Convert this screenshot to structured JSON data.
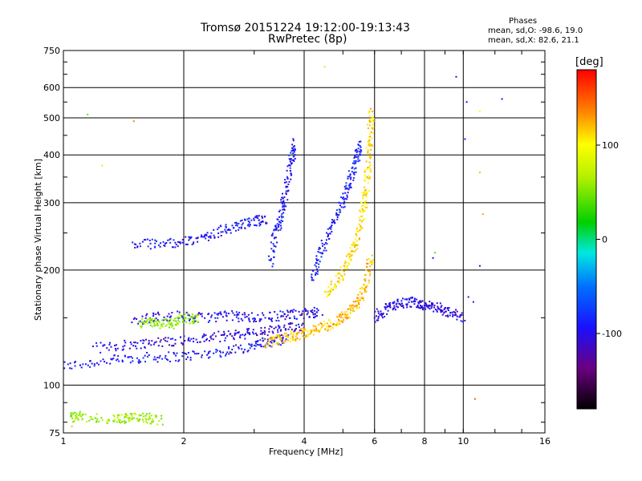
{
  "header": {
    "title_line1": "Tromsø 20151224 19:12:00-19:13:43",
    "title_line2": "RwPretec (8p)",
    "phases_label": "Phases",
    "stat_o": "mean, sd,O: -98.6, 19.0",
    "stat_x": "mean, sd,X:  82.6, 21.1"
  },
  "colorbar": {
    "unit": "[deg]",
    "ticks": [
      "100",
      "0",
      "-100"
    ],
    "tick_values": [
      100,
      0,
      -100
    ],
    "range": [
      -180,
      180
    ]
  },
  "chart_data": {
    "type": "scatter",
    "xlabel": "Frequency [MHz]",
    "ylabel": "Stationary phase Virtual Height [km]",
    "xscale": "log",
    "yscale": "log",
    "xlim": [
      1,
      16
    ],
    "ylim": [
      75,
      750
    ],
    "xticks": [
      1,
      2,
      4,
      6,
      8,
      10,
      16
    ],
    "xtick_labels": [
      "1",
      "2",
      "4",
      "6",
      "8",
      "10",
      "16"
    ],
    "yticks": [
      75,
      100,
      200,
      300,
      400,
      500,
      600,
      750
    ],
    "ytick_labels": [
      "75",
      "100",
      "200",
      "300",
      "400",
      "500",
      "600",
      "750"
    ],
    "grid": true,
    "color_by": "phase [deg]",
    "traces": [
      {
        "phase": -100,
        "x": [
          1.0,
          1.3,
          1.6,
          2.0,
          2.5,
          3.0,
          3.3,
          3.6
        ],
        "y": [
          112,
          116,
          118,
          119,
          122,
          127,
          130,
          132
        ]
      },
      {
        "phase": -110,
        "x": [
          1.2,
          1.5,
          1.8,
          2.2,
          2.6,
          3.0,
          3.5,
          4.0
        ],
        "y": [
          125,
          128,
          130,
          132,
          135,
          137,
          140,
          143
        ]
      },
      {
        "phase": -105,
        "x": [
          1.5,
          1.8,
          2.2,
          2.6,
          3.0,
          3.5,
          4.0,
          4.4
        ],
        "y": [
          148,
          152,
          150,
          152,
          150,
          152,
          154,
          155
        ]
      },
      {
        "phase": -100,
        "x": [
          1.5,
          1.8,
          2.1,
          2.4,
          2.7,
          3.0,
          3.2
        ],
        "y": [
          233,
          235,
          238,
          250,
          260,
          268,
          272
        ]
      },
      {
        "phase": -100,
        "x": [
          3.3,
          3.4,
          3.5,
          3.6,
          3.7,
          3.8
        ],
        "y": [
          210,
          250,
          280,
          320,
          380,
          430
        ]
      },
      {
        "phase": 120,
        "x": [
          3.2,
          3.5,
          3.8,
          4.1,
          4.5,
          4.9,
          5.2,
          5.5,
          5.7,
          5.9
        ],
        "y": [
          128,
          132,
          135,
          138,
          142,
          148,
          155,
          165,
          185,
          220
        ]
      },
      {
        "phase": 110,
        "x": [
          4.5,
          4.9,
          5.2,
          5.4,
          5.6,
          5.7,
          5.8,
          5.85,
          5.9
        ],
        "y": [
          170,
          190,
          215,
          240,
          280,
          320,
          380,
          450,
          530
        ]
      },
      {
        "phase": -95,
        "x": [
          4.2,
          4.4,
          4.7,
          5.0,
          5.2,
          5.4,
          5.5
        ],
        "y": [
          190,
          220,
          260,
          300,
          340,
          390,
          430
        ]
      },
      {
        "phase": -110,
        "x": [
          6.0,
          6.5,
          7.0,
          7.5,
          8.0,
          8.6,
          9.2,
          10.0
        ],
        "y": [
          150,
          160,
          163,
          165,
          162,
          160,
          155,
          150
        ]
      },
      {
        "phase": 40,
        "x": [
          1.55,
          1.7,
          1.85,
          2.0,
          2.2
        ],
        "y": [
          145,
          146,
          144,
          150,
          148
        ]
      },
      {
        "phase": 45,
        "x": [
          1.05,
          1.1,
          1.35,
          1.45,
          1.6,
          1.75
        ],
        "y": [
          82,
          83,
          81,
          82,
          82,
          81
        ]
      }
    ],
    "scattered_points": [
      {
        "x": 1.15,
        "y": 510,
        "phase": 30
      },
      {
        "x": 1.5,
        "y": 490,
        "phase": 140
      },
      {
        "x": 1.25,
        "y": 375,
        "phase": 110
      },
      {
        "x": 4.5,
        "y": 680,
        "phase": 110
      },
      {
        "x": 9.6,
        "y": 640,
        "phase": -110
      },
      {
        "x": 10.2,
        "y": 550,
        "phase": -100
      },
      {
        "x": 10.1,
        "y": 440,
        "phase": -100
      },
      {
        "x": 12.5,
        "y": 560,
        "phase": -100
      },
      {
        "x": 11.0,
        "y": 520,
        "phase": 100
      },
      {
        "x": 11.0,
        "y": 360,
        "phase": 120
      },
      {
        "x": 11.2,
        "y": 280,
        "phase": 130
      },
      {
        "x": 8.4,
        "y": 215,
        "phase": -100
      },
      {
        "x": 8.5,
        "y": 222,
        "phase": 30
      },
      {
        "x": 10.3,
        "y": 170,
        "phase": -100
      },
      {
        "x": 10.6,
        "y": 165,
        "phase": -110
      },
      {
        "x": 11.0,
        "y": 205,
        "phase": -100
      },
      {
        "x": 1.05,
        "y": 78,
        "phase": 120
      },
      {
        "x": 10.7,
        "y": 92,
        "phase": 150
      }
    ]
  }
}
